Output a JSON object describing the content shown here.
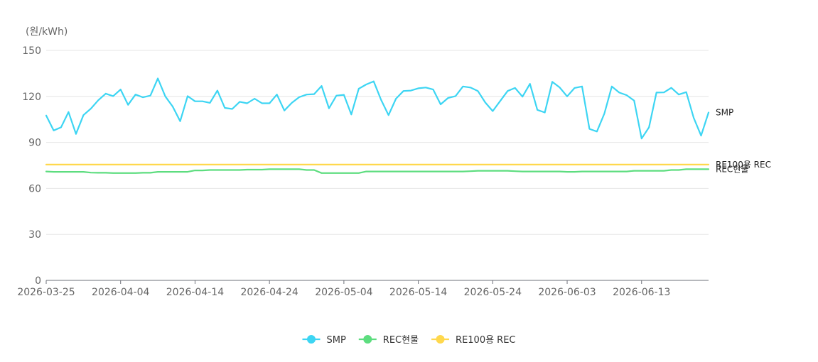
{
  "chart_data": {
    "type": "line",
    "unit_label": "(원/kWh)",
    "ylim": [
      0,
      150
    ],
    "y_ticks": [
      0,
      30,
      60,
      90,
      120,
      150
    ],
    "x_ticks": [
      "2026-03-25",
      "2026-04-04",
      "2026-04-14",
      "2026-04-24",
      "2026-05-04",
      "2026-05-14",
      "2026-05-24",
      "2026-06-03",
      "2026-06-13"
    ],
    "x_start": "2026-03-25",
    "x_end": "2026-06-22",
    "grid": true,
    "legend_position": "bottom",
    "series": [
      {
        "name": "SMP",
        "color": "#3dd5f3",
        "end_label": "SMP",
        "values": [
          107.5,
          97.8,
          99.8,
          109.8,
          95.5,
          107.8,
          112.0,
          117.5,
          121.8,
          120.2,
          124.5,
          114.5,
          121.2,
          119.4,
          120.5,
          131.7,
          120.0,
          113.4,
          103.8,
          120.2,
          116.8,
          116.8,
          115.8,
          123.8,
          112.5,
          111.8,
          116.5,
          115.5,
          118.5,
          115.5,
          115.5,
          121.2,
          110.8,
          115.8,
          119.5,
          121.2,
          121.5,
          126.8,
          112.2,
          120.5,
          121.0,
          108.2,
          125.0,
          127.8,
          129.8,
          117.8,
          107.8,
          118.5,
          123.5,
          123.8,
          125.3,
          125.8,
          124.5,
          114.8,
          119.0,
          120.2,
          126.5,
          125.8,
          123.5,
          116.0,
          110.4,
          117.0,
          123.5,
          125.5,
          119.8,
          128.2,
          111.2,
          109.5,
          129.5,
          125.8,
          120.0,
          125.5,
          126.5,
          98.8,
          97.1,
          108.8,
          126.5,
          122.5,
          120.8,
          117.2,
          92.5,
          99.8,
          122.5,
          122.6,
          125.6,
          121.2,
          122.8,
          106.0,
          94.4,
          109.5
        ]
      },
      {
        "name": "REC현물",
        "color": "#5ddd7f",
        "end_label": "REC현물",
        "values": [
          71.0,
          70.8,
          70.8,
          70.8,
          70.8,
          70.8,
          70.3,
          70.2,
          70.2,
          70.0,
          70.0,
          70.0,
          70.0,
          70.2,
          70.2,
          70.8,
          70.8,
          70.8,
          70.8,
          70.8,
          71.7,
          71.7,
          72.0,
          72.0,
          72.0,
          72.0,
          72.0,
          72.2,
          72.2,
          72.2,
          72.5,
          72.5,
          72.5,
          72.5,
          72.5,
          72.0,
          72.0,
          70.0,
          70.0,
          70.0,
          70.0,
          70.0,
          70.0,
          71.0,
          71.0,
          71.0,
          71.0,
          71.0,
          71.0,
          71.0,
          71.0,
          71.0,
          71.0,
          71.0,
          71.0,
          71.0,
          71.0,
          71.2,
          71.5,
          71.5,
          71.5,
          71.5,
          71.5,
          71.2,
          71.0,
          71.0,
          71.0,
          71.0,
          71.0,
          71.0,
          70.8,
          70.8,
          71.0,
          71.0,
          71.0,
          71.0,
          71.0,
          71.0,
          71.0,
          71.5,
          71.5,
          71.5,
          71.5,
          71.5,
          72.0,
          72.0,
          72.5,
          72.5,
          72.5,
          72.5
        ]
      },
      {
        "name": "RE100용 REC",
        "color": "#ffd84d",
        "end_label": "RE100용 REC",
        "values": [
          75.5,
          75.5,
          75.5,
          75.5,
          75.5,
          75.5,
          75.5,
          75.5,
          75.5,
          75.5,
          75.5,
          75.5,
          75.5,
          75.5,
          75.5,
          75.5,
          75.5,
          75.5,
          75.5,
          75.5,
          75.5,
          75.5,
          75.5,
          75.5,
          75.5,
          75.5,
          75.5,
          75.5,
          75.5,
          75.5,
          75.5,
          75.5,
          75.5,
          75.5,
          75.5,
          75.5,
          75.5,
          75.5,
          75.5,
          75.5,
          75.5,
          75.5,
          75.5,
          75.5,
          75.5,
          75.5,
          75.5,
          75.5,
          75.5,
          75.5,
          75.5,
          75.5,
          75.5,
          75.5,
          75.5,
          75.5,
          75.5,
          75.5,
          75.5,
          75.5,
          75.5,
          75.5,
          75.5,
          75.5,
          75.5,
          75.5,
          75.5,
          75.5,
          75.5,
          75.5,
          75.5,
          75.5,
          75.5,
          75.5,
          75.5,
          75.5,
          75.5,
          75.5,
          75.5,
          75.5,
          75.5,
          75.5,
          75.5,
          75.5,
          75.5,
          75.5,
          75.5,
          75.5,
          75.5,
          75.5
        ]
      }
    ]
  }
}
